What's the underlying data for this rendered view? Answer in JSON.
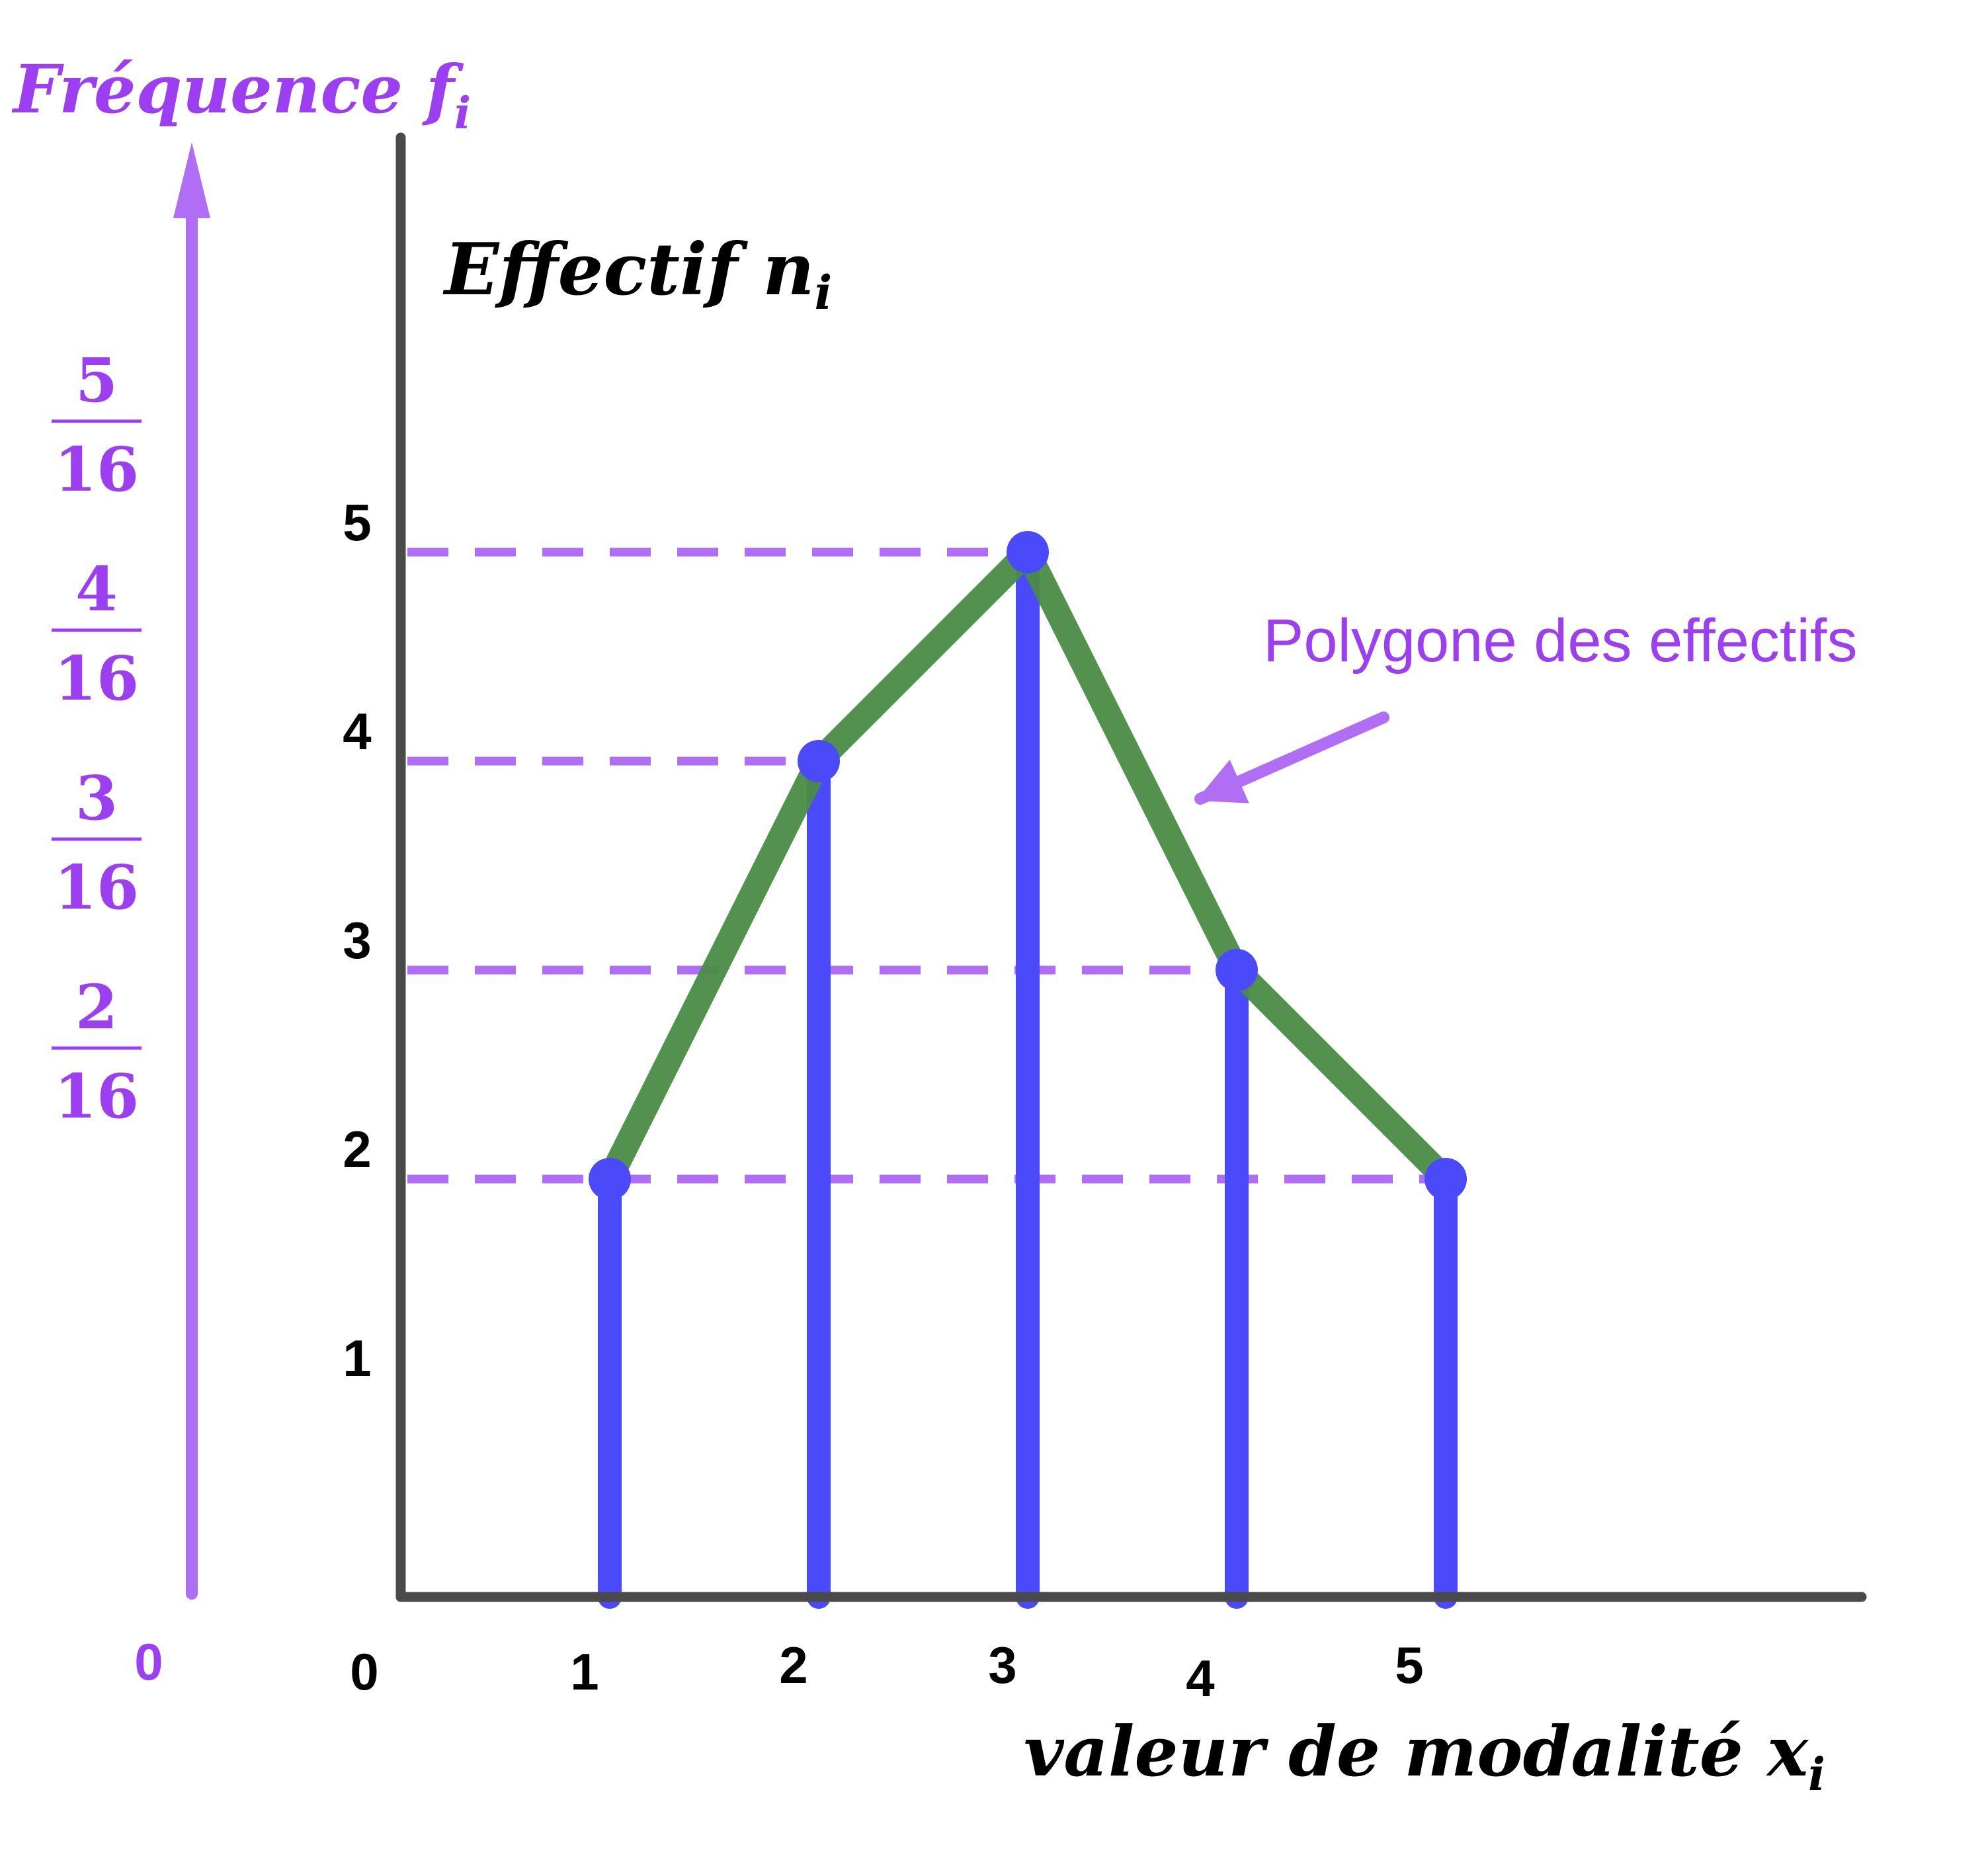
{
  "chart_data": {
    "type": "bar",
    "title": "",
    "x": [
      1,
      2,
      3,
      4,
      5
    ],
    "values": [
      2,
      4,
      5,
      3,
      2
    ],
    "x_ticks": [
      "0",
      "1",
      "2",
      "3",
      "4",
      "5"
    ],
    "y_ticks": [
      "1",
      "2",
      "3",
      "4",
      "5"
    ],
    "xlabel": {
      "main": "valeur de modalité x",
      "sub": "i"
    },
    "ylabel": {
      "main": "Effectif n",
      "sub": "i"
    },
    "secondary_axis": {
      "label": {
        "main": "Fréquence f",
        "sub": "i"
      },
      "zero": "0",
      "ticks": [
        {
          "y": 2,
          "num": "2",
          "den": "16"
        },
        {
          "y": 3,
          "num": "3",
          "den": "16"
        },
        {
          "y": 4,
          "num": "4",
          "den": "16"
        },
        {
          "y": 5,
          "num": "5",
          "den": "16"
        }
      ]
    },
    "annotation": "Polygone des effectifs",
    "ylim": [
      0,
      7
    ],
    "grid": false,
    "colors": {
      "bars": "#4a4afa",
      "polygon": "#4a8c45",
      "dashes": "#b06ef5",
      "accent": "#9b3ff0",
      "axes": "#4a4a4a"
    }
  }
}
